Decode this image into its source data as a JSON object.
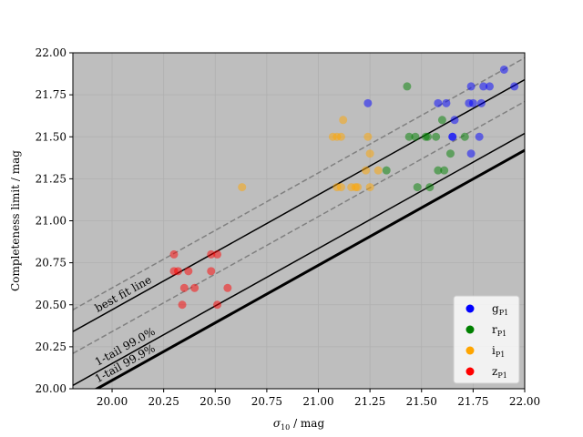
{
  "chart_data": {
    "type": "scatter",
    "x_label": "σ10 / mag",
    "y_label": "Completeness limit / mag",
    "xlim": [
      19.81,
      22.0
    ],
    "ylim": [
      20.0,
      22.0
    ],
    "xticks": [
      {
        "value": 20.0,
        "label": "20.00"
      },
      {
        "value": 20.25,
        "label": "20.25"
      },
      {
        "value": 20.5,
        "label": "20.50"
      },
      {
        "value": 20.75,
        "label": "20.75"
      },
      {
        "value": 21.0,
        "label": "21.00"
      },
      {
        "value": 21.25,
        "label": "21.25"
      },
      {
        "value": 21.5,
        "label": "21.50"
      },
      {
        "value": 21.75,
        "label": "21.75"
      },
      {
        "value": 22.0,
        "label": "22.00"
      }
    ],
    "yticks": [
      {
        "value": 20.0,
        "label": "20.00"
      },
      {
        "value": 20.25,
        "label": "20.25"
      },
      {
        "value": 20.5,
        "label": "20.50"
      },
      {
        "value": 20.75,
        "label": "20.75"
      },
      {
        "value": 21.0,
        "label": "21.00"
      },
      {
        "value": 21.25,
        "label": "21.25"
      },
      {
        "value": 21.5,
        "label": "21.50"
      },
      {
        "value": 21.75,
        "label": "21.75"
      },
      {
        "value": 22.0,
        "label": "22.00"
      }
    ],
    "grid": true,
    "legend": "lower right",
    "series": [
      {
        "name": "gP1",
        "color": "#0000ff",
        "x": [
          21.24,
          21.58,
          21.62,
          21.66,
          21.65,
          21.73,
          21.74,
          21.75,
          21.78,
          21.79,
          21.8,
          21.83,
          21.74,
          21.9,
          21.95,
          21.65
        ],
        "values": [
          21.7,
          21.7,
          21.7,
          21.6,
          21.5,
          21.7,
          21.8,
          21.7,
          21.5,
          21.7,
          21.8,
          21.8,
          21.4,
          21.9,
          21.8,
          21.5
        ]
      },
      {
        "name": "rP1",
        "color": "#008000",
        "x": [
          21.43,
          21.44,
          21.47,
          21.52,
          21.53,
          21.57,
          21.6,
          21.48,
          21.54,
          21.58,
          21.61,
          21.64,
          21.33,
          21.71
        ],
        "values": [
          21.8,
          21.5,
          21.5,
          21.5,
          21.5,
          21.5,
          21.6,
          21.2,
          21.2,
          21.3,
          21.3,
          21.4,
          21.3,
          21.5
        ]
      },
      {
        "name": "iP1",
        "color": "#ffa500",
        "x": [
          20.63,
          21.07,
          21.09,
          21.11,
          21.12,
          21.09,
          21.11,
          21.16,
          21.18,
          21.19,
          21.23,
          21.24,
          21.25,
          21.25,
          21.29
        ],
        "values": [
          21.2,
          21.5,
          21.5,
          21.5,
          21.6,
          21.2,
          21.2,
          21.2,
          21.2,
          21.2,
          21.3,
          21.5,
          21.4,
          21.2,
          21.3
        ]
      },
      {
        "name": "zP1",
        "color": "#ff0000",
        "x": [
          20.3,
          20.3,
          20.32,
          20.35,
          20.37,
          20.4,
          20.34,
          20.48,
          20.51,
          20.48,
          20.51,
          20.56
        ],
        "values": [
          20.8,
          20.7,
          20.7,
          20.6,
          20.7,
          20.6,
          20.5,
          20.8,
          20.8,
          20.7,
          20.5,
          20.6
        ]
      }
    ],
    "lines": [
      {
        "label": "best fit line",
        "x": [
          19.81,
          22.0
        ],
        "values": [
          20.34,
          21.84
        ],
        "color": "#000000",
        "dashed": false,
        "width": 1.5
      },
      {
        "x": [
          19.81,
          22.0
        ],
        "values": [
          20.47,
          21.97
        ],
        "color": "#808080",
        "dashed": true,
        "width": 1.5
      },
      {
        "x": [
          19.81,
          22.0
        ],
        "values": [
          20.21,
          21.71
        ],
        "color": "#808080",
        "dashed": true,
        "width": 1.5
      },
      {
        "label": "1-tail 99.0%",
        "x": [
          19.81,
          22.0
        ],
        "values": [
          20.02,
          21.52
        ],
        "color": "#000000",
        "dashed": false,
        "width": 1.5
      },
      {
        "label": "1-tail 99.9%",
        "x": [
          19.81,
          22.0
        ],
        "values": [
          19.92,
          21.42
        ],
        "color": "#000000",
        "dashed": false,
        "width": 3
      }
    ]
  }
}
